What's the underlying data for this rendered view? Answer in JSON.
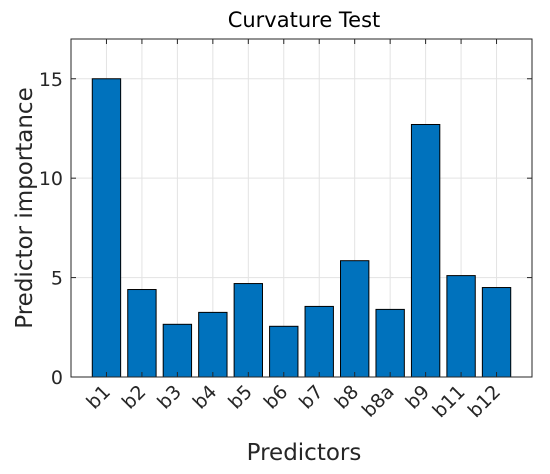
{
  "chart_data": {
    "type": "bar",
    "title": "Curvature Test",
    "xlabel": "Predictors",
    "ylabel": "Predictor importance",
    "categories": [
      "b1",
      "b2",
      "b3",
      "b4",
      "b5",
      "b6",
      "b7",
      "b8",
      "b8a",
      "b9",
      "b11",
      "b12"
    ],
    "values": [
      15.0,
      4.4,
      2.65,
      3.25,
      4.7,
      2.55,
      3.55,
      5.85,
      3.4,
      12.7,
      5.1,
      4.5
    ],
    "ylim": [
      0,
      17
    ],
    "yticks": [
      0,
      5,
      10,
      15
    ],
    "grid": true,
    "bar_color": "#0072bd"
  }
}
